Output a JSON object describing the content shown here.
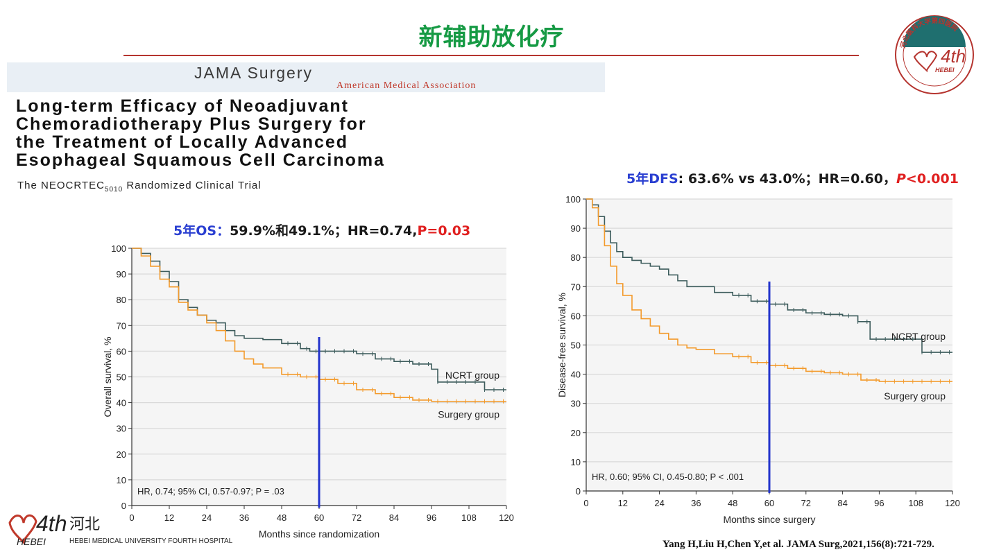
{
  "slide": {
    "title": "新辅助放化疗",
    "citation": "Yang H,Liu H,Chen Y,et al. JAMA Surg,2021,156(8):721-729."
  },
  "journal": {
    "name": "JAMA Surgery",
    "association": "American Medical Association"
  },
  "paper": {
    "title_lines": [
      "Long-term Efficacy of Neoadjuvant",
      "Chemoradiotherapy Plus Surgery for",
      "the Treatment of Locally Advanced",
      "Esophageal Squamous Cell Carcinoma"
    ],
    "subtitle_pre": "The NEOCRTEC",
    "subtitle_sub": "5010",
    "subtitle_post": " Randomized Clinical Trial"
  },
  "os_stats": {
    "label": "5年OS",
    "sep": "：",
    "values": "59.9%和49.1%；HR=0.74,",
    "p": "P=0.03"
  },
  "dfs_stats": {
    "label": "5年DFS",
    "values": ": 63.6% vs 43.0%；HR=0.60，",
    "p_italic": "P",
    "p_rest": "<0.001"
  },
  "logos": {
    "top_right": {
      "arc_text": "河北医科大学第四医院",
      "mark": "4th",
      "sub": "HEBEI",
      "bottom_text": "The Fourth Hospital of Hebei Medical University"
    },
    "bottom_left": {
      "mark": "4th",
      "sub": "HEBEI",
      "cn": "河北",
      "en": "HEBEI MEDICAL UNIVERSITY FOURTH HOSPITAL"
    }
  },
  "colors": {
    "ncrt": "#3d5c5c",
    "surgery": "#f39a2b",
    "marker": "#2233cc",
    "grid": "#d9d9d9",
    "title_green": "#169a44"
  },
  "chart_data": [
    {
      "type": "line",
      "id": "os",
      "xlabel": "Months since randomization",
      "ylabel": "Overall survival, %",
      "xlim": [
        0,
        120
      ],
      "ylim": [
        0,
        100
      ],
      "xticks": [
        0,
        12,
        24,
        36,
        48,
        60,
        72,
        84,
        96,
        108,
        120
      ],
      "yticks": [
        0,
        10,
        20,
        30,
        40,
        50,
        60,
        70,
        80,
        90,
        100
      ],
      "grid": true,
      "marker_x": 60,
      "annotation": "HR, 0.74; 95% CI, 0.57-0.97; P = .03",
      "series": [
        {
          "name": "NCRT group",
          "color": "#3d5c5c",
          "x": [
            0,
            3,
            6,
            9,
            12,
            15,
            18,
            21,
            24,
            27,
            30,
            33,
            36,
            42,
            48,
            54,
            57,
            60,
            72,
            78,
            84,
            90,
            96,
            98,
            104,
            108,
            113,
            120
          ],
          "y": [
            100,
            98,
            95,
            91,
            87,
            80,
            77,
            74,
            72,
            71,
            68,
            66,
            65,
            64.5,
            63,
            61,
            60,
            60,
            59,
            57,
            56,
            55,
            53,
            48,
            48,
            48,
            45,
            45
          ]
        },
        {
          "name": "Surgery group",
          "color": "#f39a2b",
          "x": [
            0,
            3,
            6,
            9,
            12,
            15,
            18,
            21,
            24,
            27,
            30,
            33,
            36,
            39,
            42,
            48,
            54,
            60,
            66,
            72,
            78,
            84,
            90,
            96,
            102,
            108,
            114,
            120
          ],
          "y": [
            100,
            97,
            93,
            88,
            85,
            79,
            76,
            74,
            71,
            68,
            64,
            60,
            57,
            55,
            53.5,
            51,
            50,
            49,
            47.5,
            45,
            43.5,
            42,
            41,
            40.5,
            40.5,
            40.5,
            40.5,
            40.5
          ]
        }
      ]
    },
    {
      "type": "line",
      "id": "dfs",
      "xlabel": "Months since surgery",
      "ylabel": "Disease-free survival, %",
      "xlim": [
        0,
        120
      ],
      "ylim": [
        0,
        100
      ],
      "xticks": [
        0,
        12,
        24,
        36,
        48,
        60,
        72,
        84,
        96,
        108,
        120
      ],
      "yticks": [
        0,
        10,
        20,
        30,
        40,
        50,
        60,
        70,
        80,
        90,
        100
      ],
      "grid": true,
      "marker_x": 60,
      "annotation": "HR, 0.60; 95% CI, 0.45-0.80; P < .001",
      "series": [
        {
          "name": "NCRT group",
          "color": "#3d5c5c",
          "x": [
            0,
            2,
            4,
            6,
            8,
            10,
            12,
            15,
            18,
            21,
            24,
            27,
            30,
            33,
            36,
            42,
            48,
            54,
            60,
            66,
            72,
            78,
            84,
            89,
            93,
            96,
            102,
            108,
            110,
            120
          ],
          "y": [
            100,
            98,
            94,
            89,
            85,
            82,
            80,
            79,
            78,
            77,
            76,
            74,
            72,
            70,
            70,
            68,
            67,
            65,
            64,
            62,
            61,
            60.5,
            60,
            58,
            52,
            52,
            52,
            52,
            47.5,
            47.5
          ]
        },
        {
          "name": "Surgery group",
          "color": "#f39a2b",
          "x": [
            0,
            2,
            4,
            6,
            8,
            10,
            12,
            15,
            18,
            21,
            24,
            27,
            30,
            33,
            36,
            42,
            48,
            54,
            60,
            66,
            72,
            78,
            84,
            90,
            96,
            102,
            108,
            114,
            120
          ],
          "y": [
            100,
            97,
            91,
            84,
            77,
            71,
            67,
            62,
            59,
            56.5,
            54,
            52,
            50,
            49,
            48.5,
            47,
            46,
            44,
            43,
            42,
            41,
            40.5,
            40,
            38,
            37.5,
            37.5,
            37.5,
            37.5,
            37.5
          ]
        }
      ]
    }
  ]
}
